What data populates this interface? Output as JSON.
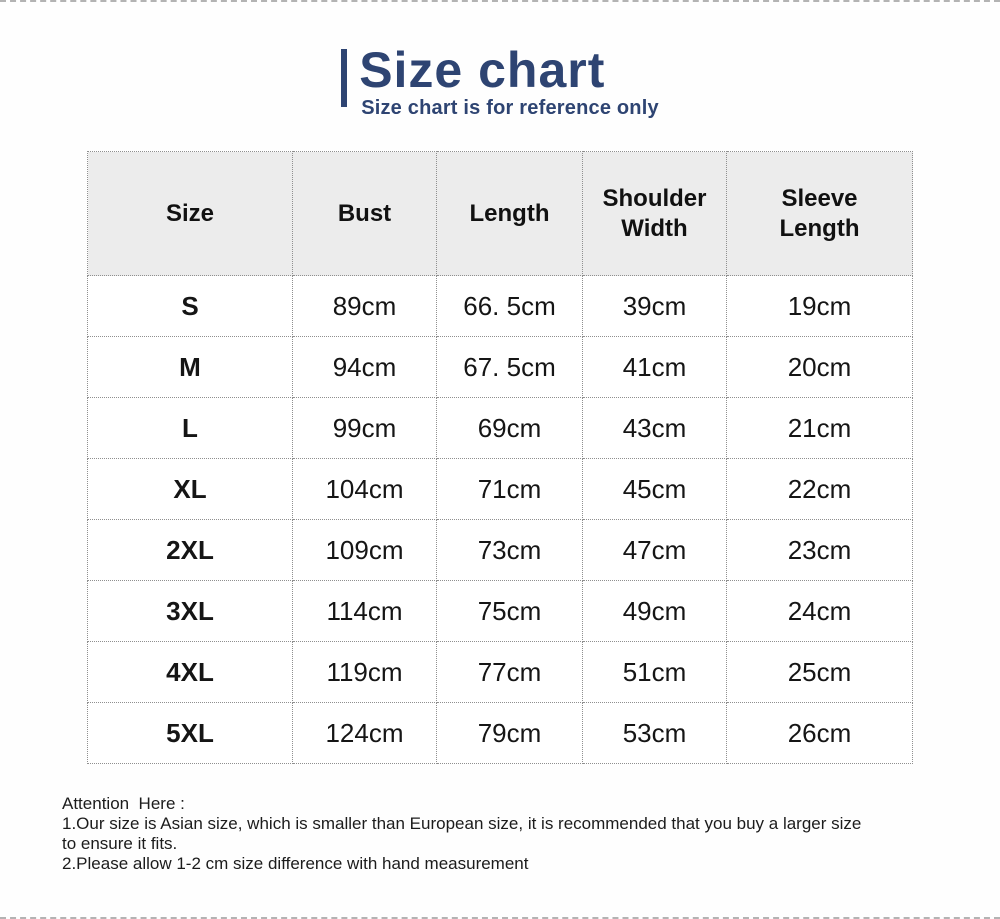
{
  "header": {
    "title": "Size chart",
    "subtitle": "Size chart is for reference only"
  },
  "chart_data": {
    "type": "table",
    "title": "Size chart",
    "subtitle": "Size chart is for reference only",
    "columns": [
      "Size",
      "Bust",
      "Length",
      "Shoulder Width",
      "Sleeve Length"
    ],
    "rows": [
      [
        "S",
        "89cm",
        "66. 5cm",
        "39cm",
        "19cm"
      ],
      [
        "M",
        "94cm",
        "67. 5cm",
        "41cm",
        "20cm"
      ],
      [
        "L",
        "99cm",
        "69cm",
        "43cm",
        "21cm"
      ],
      [
        "XL",
        "104cm",
        "71cm",
        "45cm",
        "22cm"
      ],
      [
        "2XL",
        "109cm",
        "73cm",
        "47cm",
        "23cm"
      ],
      [
        "3XL",
        "114cm",
        "75cm",
        "49cm",
        "24cm"
      ],
      [
        "4XL",
        "119cm",
        "77cm",
        "51cm",
        "25cm"
      ],
      [
        "5XL",
        "124cm",
        "79cm",
        "53cm",
        "26cm"
      ]
    ]
  },
  "attention": {
    "heading": "Attention  Here :",
    "lines": [
      "1.Our size is Asian size, which is smaller than European size, it is recommended that you buy a larger size",
      "to ensure it fits.",
      "2.Please allow 1-2 cm size difference with hand measurement"
    ]
  },
  "colors": {
    "accent_navy": "#2e4472",
    "header_row_bg": "#ececec",
    "table_border": "#8f8f8f",
    "dashed_edge": "#b3b3b3"
  }
}
